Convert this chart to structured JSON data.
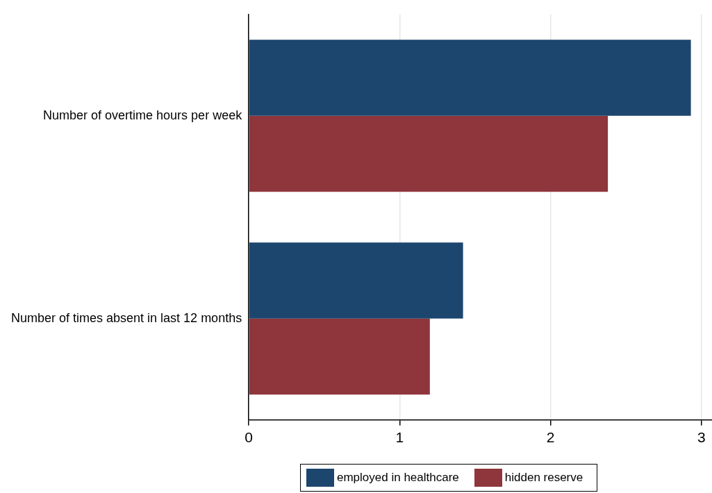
{
  "chart_data": {
    "type": "bar",
    "orientation": "horizontal",
    "categories": [
      "Number of overtime hours per week",
      "Number of times absent in last 12 months"
    ],
    "series": [
      {
        "name": "employed in healthcare",
        "color": "#1c466e",
        "values": [
          2.93,
          1.42
        ]
      },
      {
        "name": "hidden reserve",
        "color": "#8f353c",
        "values": [
          2.38,
          1.2
        ]
      }
    ],
    "xlim": [
      0,
      3.07
    ],
    "xticks": [
      0,
      1,
      2,
      3
    ],
    "grid": "x",
    "legend": "bottom"
  }
}
